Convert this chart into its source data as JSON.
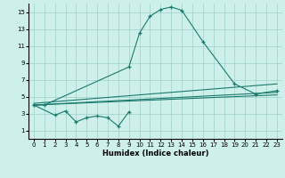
{
  "xlabel": "Humidex (Indice chaleur)",
  "x_values": [
    0,
    1,
    2,
    3,
    4,
    5,
    6,
    7,
    8,
    9,
    10,
    11,
    12,
    13,
    14,
    15,
    16,
    17,
    18,
    19,
    20,
    21,
    22,
    23
  ],
  "series1": [
    4.0,
    4.0,
    null,
    null,
    null,
    null,
    null,
    null,
    null,
    8.5,
    12.5,
    14.5,
    15.3,
    15.6,
    15.2,
    null,
    11.5,
    null,
    null,
    6.5,
    null,
    5.3,
    null,
    5.7
  ],
  "series2": [
    4.0,
    null,
    2.8,
    3.3,
    2.0,
    2.5,
    2.7,
    2.5,
    1.5,
    3.2,
    null,
    null,
    null,
    null,
    null,
    null,
    null,
    null,
    null,
    null,
    null,
    null,
    null,
    null
  ],
  "line3_x": [
    0,
    23
  ],
  "line3_y": [
    4.2,
    6.5
  ],
  "line4_x": [
    0,
    23
  ],
  "line4_y": [
    4.0,
    5.5
  ],
  "line5_x": [
    0,
    23
  ],
  "line5_y": [
    4.0,
    5.2
  ],
  "ylim": [
    0,
    16
  ],
  "xlim": [
    -0.5,
    23.5
  ],
  "yticks": [
    1,
    3,
    5,
    7,
    9,
    11,
    13,
    15
  ],
  "xticks": [
    0,
    1,
    2,
    3,
    4,
    5,
    6,
    7,
    8,
    9,
    10,
    11,
    12,
    13,
    14,
    15,
    16,
    17,
    18,
    19,
    20,
    21,
    22,
    23
  ],
  "line_color": "#1a7a6e",
  "bg_color": "#cef0ea",
  "grid_color": "#9ecfc7"
}
